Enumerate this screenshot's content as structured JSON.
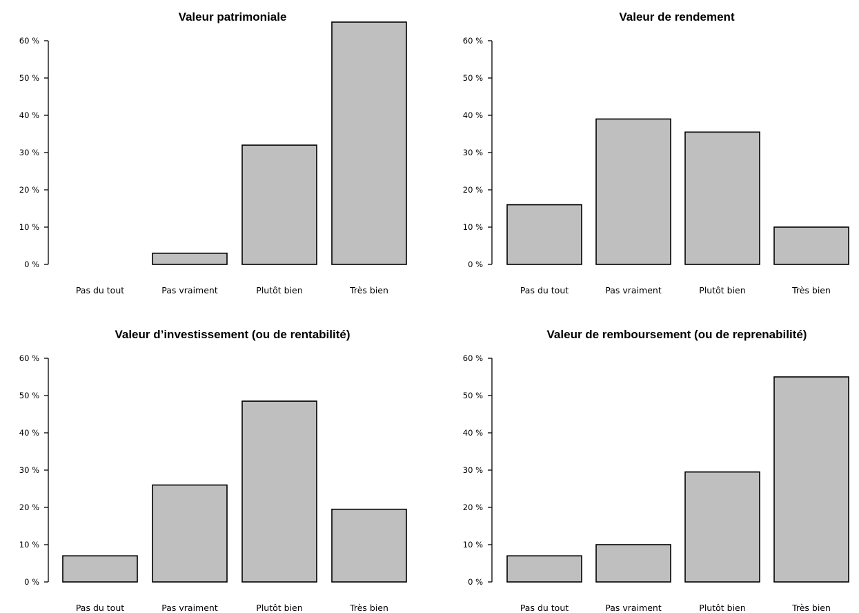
{
  "colors": {
    "bar_fill": "#bfbfbf",
    "bar_stroke": "#000000",
    "axis": "#000000"
  },
  "chart_data": [
    {
      "type": "bar",
      "title": "Valeur patrimoniale",
      "categories": [
        "Pas du tout",
        "Pas vraiment",
        "Plutôt bien",
        "Très bien"
      ],
      "values": [
        0,
        3,
        32,
        65
      ],
      "ylim": [
        0,
        60
      ],
      "yticks": [
        "0 %",
        "10 %",
        "20 %",
        "30 %",
        "40 %",
        "50 %",
        "60 %"
      ],
      "xlabel": "",
      "ylabel": "",
      "grid": false,
      "legend": "none"
    },
    {
      "type": "bar",
      "title": "Valeur de rendement",
      "categories": [
        "Pas du tout",
        "Pas vraiment",
        "Plutôt bien",
        "Très bien"
      ],
      "values": [
        16,
        39,
        35.5,
        10
      ],
      "ylim": [
        0,
        60
      ],
      "yticks": [
        "0 %",
        "10 %",
        "20 %",
        "30 %",
        "40 %",
        "50 %",
        "60 %"
      ],
      "xlabel": "",
      "ylabel": "",
      "grid": false,
      "legend": "none"
    },
    {
      "type": "bar",
      "title": "Valeur d’investissement (ou de rentabilité)",
      "categories": [
        "Pas du tout",
        "Pas vraiment",
        "Plutôt bien",
        "Très bien"
      ],
      "values": [
        7,
        26,
        48.5,
        19.5
      ],
      "ylim": [
        0,
        60
      ],
      "yticks": [
        "0 %",
        "10 %",
        "20 %",
        "30 %",
        "40 %",
        "50 %",
        "60 %"
      ],
      "xlabel": "",
      "ylabel": "",
      "grid": false,
      "legend": "none"
    },
    {
      "type": "bar",
      "title": "Valeur de remboursement (ou de reprenabilité)",
      "categories": [
        "Pas du tout",
        "Pas vraiment",
        "Plutôt bien",
        "Très bien"
      ],
      "values": [
        7,
        10,
        29.5,
        55
      ],
      "ylim": [
        0,
        60
      ],
      "yticks": [
        "0 %",
        "10 %",
        "20 %",
        "30 %",
        "40 %",
        "50 %",
        "60 %"
      ],
      "xlabel": "",
      "ylabel": "",
      "grid": false,
      "legend": "none"
    }
  ]
}
